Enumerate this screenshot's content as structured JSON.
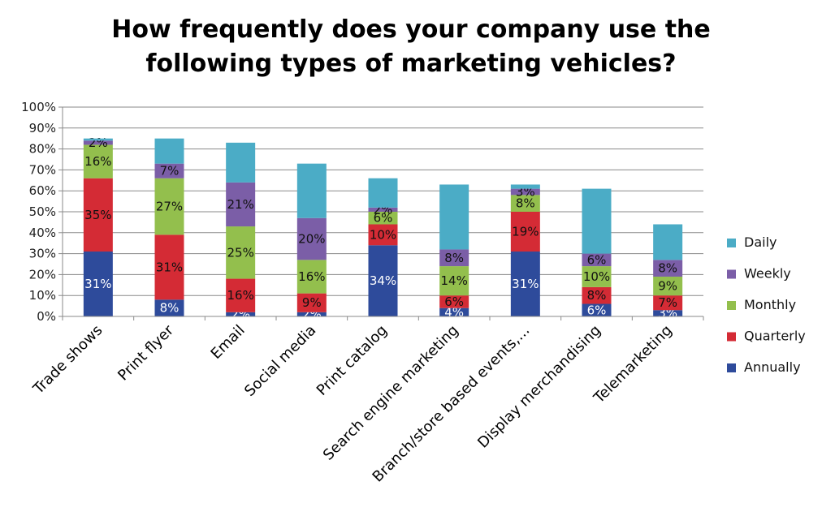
{
  "chart_data": {
    "type": "bar",
    "stacked": true,
    "title_lines": [
      "How frequently does your company use the",
      "following types of marketing vehicles?"
    ],
    "categories": [
      "Trade shows",
      "Print flyer",
      "Email",
      "Social media",
      "Print catalog",
      "Search engine marketing",
      "Branch/store based events,...",
      "Display merchandising",
      "Telemarketing"
    ],
    "ylim": [
      0,
      100
    ],
    "yticks": [
      "0%",
      "10%",
      "20%",
      "30%",
      "40%",
      "50%",
      "60%",
      "70%",
      "80%",
      "90%",
      "100%"
    ],
    "grid": true,
    "legend_position": "right",
    "series": [
      {
        "name": "Annually",
        "color": "#2E4B9B",
        "label_color": "#ffffff",
        "values": [
          31,
          8,
          2,
          2,
          34,
          4,
          31,
          6,
          3
        ],
        "labels": [
          "31%",
          "8%",
          "2%",
          "2%",
          "34%",
          "4%",
          "31%",
          "6%",
          "3%"
        ]
      },
      {
        "name": "Quarterly",
        "color": "#D42B35",
        "label_color": "#111111",
        "values": [
          35,
          31,
          16,
          9,
          10,
          6,
          19,
          8,
          7
        ],
        "labels": [
          "35%",
          "31%",
          "16%",
          "9%",
          "10%",
          "6%",
          "19%",
          "8%",
          "7%"
        ]
      },
      {
        "name": "Monthly",
        "color": "#93BF4D",
        "label_color": "#111111",
        "values": [
          16,
          27,
          25,
          16,
          6,
          14,
          8,
          10,
          9
        ],
        "labels": [
          "16%",
          "27%",
          "25%",
          "16%",
          "6%",
          "14%",
          "8%",
          "10%",
          "9%"
        ]
      },
      {
        "name": "Weekly",
        "color": "#7B5EA7",
        "label_color": "#111111",
        "values": [
          2,
          7,
          21,
          20,
          2,
          8,
          3,
          6,
          8
        ],
        "labels": [
          "2%",
          "7%",
          "21%",
          "20%",
          "2%",
          "8%",
          "3%",
          "6%",
          "8%"
        ]
      },
      {
        "name": "Daily",
        "color": "#4BACC6",
        "label_color": "#111111",
        "values": [
          1,
          12,
          19,
          26,
          14,
          31,
          2,
          31,
          17
        ],
        "labels": [
          "",
          "",
          "",
          "",
          "",
          "",
          "",
          "",
          ""
        ]
      }
    ],
    "legend_order": [
      "Daily",
      "Weekly",
      "Monthly",
      "Quarterly",
      "Annually"
    ]
  }
}
